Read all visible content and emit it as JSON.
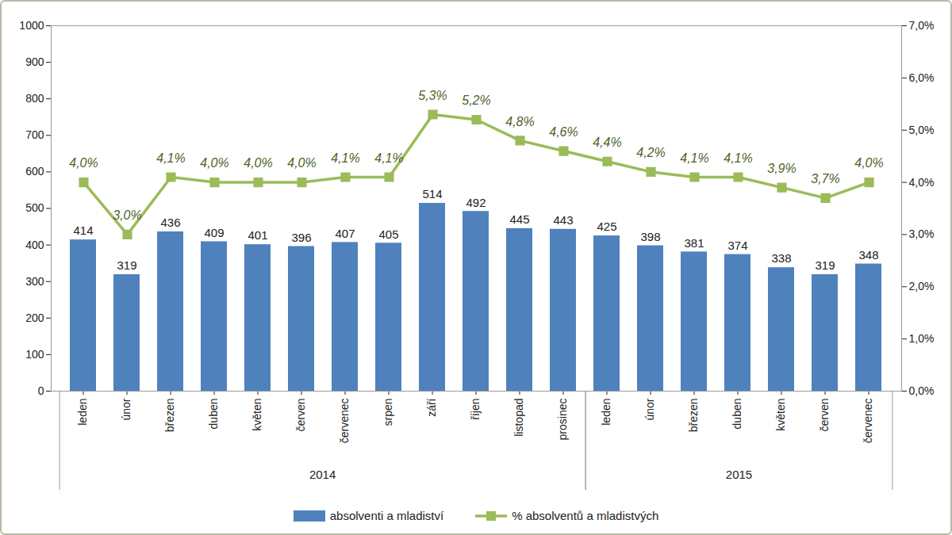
{
  "chart_data": {
    "type": "bar",
    "categories": [
      "leden",
      "únor",
      "březen",
      "duben",
      "květen",
      "červen",
      "červenec",
      "srpen",
      "září",
      "říjen",
      "listopad",
      "prosinec",
      "leden",
      "únor",
      "březen",
      "duben",
      "květen",
      "červen",
      "červenec"
    ],
    "category_groups": [
      "2014",
      "2014",
      "2014",
      "2014",
      "2014",
      "2014",
      "2014",
      "2014",
      "2014",
      "2014",
      "2014",
      "2014",
      "2015",
      "2015",
      "2015",
      "2015",
      "2015",
      "2015",
      "2015"
    ],
    "series": [
      {
        "name": "absolventi a mladiství",
        "type": "bar",
        "color": "#4f81bd",
        "values": [
          414,
          319,
          436,
          409,
          401,
          396,
          407,
          405,
          514,
          492,
          445,
          443,
          425,
          398,
          381,
          374,
          338,
          319,
          348
        ]
      },
      {
        "name": "% absolventů a mladistvých",
        "type": "line",
        "axis": "y2",
        "color": "#9bbb59",
        "marker": "square",
        "values": [
          4.0,
          3.0,
          4.1,
          4.0,
          4.0,
          4.0,
          4.1,
          4.1,
          5.3,
          5.2,
          4.8,
          4.6,
          4.4,
          4.2,
          4.1,
          4.1,
          3.9,
          3.7,
          4.0
        ],
        "value_labels": [
          "4,0%",
          "3,0%",
          "4,1%",
          "4,0%",
          "4,0%",
          "4,0%",
          "4,1%",
          "4,1%",
          "5,3%",
          "5,2%",
          "4,8%",
          "4,6%",
          "4,4%",
          "4,2%",
          "4,1%",
          "4,1%",
          "3,9%",
          "3,7%",
          "4,0%"
        ]
      }
    ],
    "ylim": [
      0,
      1000
    ],
    "yticks": [
      0,
      100,
      200,
      300,
      400,
      500,
      600,
      700,
      800,
      900,
      1000
    ],
    "y2lim": [
      0,
      7
    ],
    "y2ticks": [
      {
        "value": 0,
        "label": "0,0%"
      },
      {
        "value": 1,
        "label": "1,0%"
      },
      {
        "value": 2,
        "label": "2,0%"
      },
      {
        "value": 3,
        "label": "3,0%"
      },
      {
        "value": 4,
        "label": "4,0%"
      },
      {
        "value": 5,
        "label": "5,0%"
      },
      {
        "value": 6,
        "label": "6,0%"
      },
      {
        "value": 7,
        "label": "7,0%"
      }
    ],
    "data_labels": true,
    "legend": "bottom",
    "grid": false
  }
}
